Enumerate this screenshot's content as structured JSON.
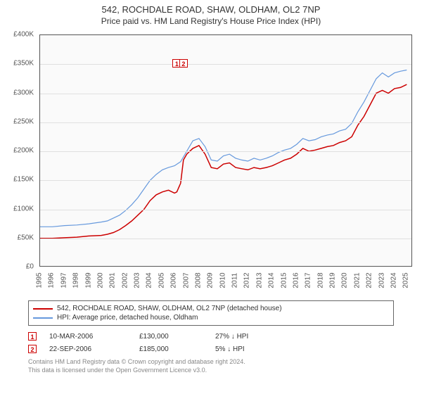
{
  "title": "542, ROCHDALE ROAD, SHAW, OLDHAM, OL2 7NP",
  "subtitle": "Price paid vs. HM Land Registry's House Price Index (HPI)",
  "chart": {
    "type": "line",
    "background_color": "#fafafa",
    "border_color": "#555555",
    "grid_color": "#e0e0e0",
    "x_years": [
      1995,
      1996,
      1997,
      1998,
      1999,
      2000,
      2001,
      2002,
      2003,
      2004,
      2005,
      2006,
      2007,
      2008,
      2009,
      2010,
      2011,
      2012,
      2013,
      2014,
      2015,
      2016,
      2017,
      2018,
      2019,
      2020,
      2021,
      2022,
      2023,
      2024,
      2025
    ],
    "x_min": 1995,
    "x_max": 2025.5,
    "ylim": [
      0,
      400000
    ],
    "ytick_step": 50000,
    "y_labels": [
      "£0",
      "£50K",
      "£100K",
      "£150K",
      "£200K",
      "£250K",
      "£300K",
      "£350K",
      "£400K"
    ],
    "label_fontsize": 10,
    "label_color": "#555555",
    "series": [
      {
        "name": "property",
        "color": "#cc0000",
        "width": 1.5,
        "legend": "542, ROCHDALE ROAD, SHAW, OLDHAM, OL2 7NP (detached house)",
        "points": [
          [
            1995,
            50000
          ],
          [
            1996,
            50000
          ],
          [
            1997,
            51000
          ],
          [
            1998,
            52000
          ],
          [
            1999,
            54000
          ],
          [
            2000,
            55000
          ],
          [
            2000.5,
            57000
          ],
          [
            2001,
            60000
          ],
          [
            2001.5,
            65000
          ],
          [
            2002,
            72000
          ],
          [
            2002.5,
            80000
          ],
          [
            2003,
            90000
          ],
          [
            2003.5,
            100000
          ],
          [
            2004,
            115000
          ],
          [
            2004.5,
            125000
          ],
          [
            2005,
            130000
          ],
          [
            2005.5,
            133000
          ],
          [
            2006,
            128000
          ],
          [
            2006.19,
            130000
          ],
          [
            2006.5,
            145000
          ],
          [
            2006.73,
            185000
          ],
          [
            2007,
            195000
          ],
          [
            2007.5,
            205000
          ],
          [
            2008,
            210000
          ],
          [
            2008.5,
            195000
          ],
          [
            2009,
            172000
          ],
          [
            2009.5,
            170000
          ],
          [
            2010,
            178000
          ],
          [
            2010.5,
            180000
          ],
          [
            2011,
            172000
          ],
          [
            2011.5,
            170000
          ],
          [
            2012,
            168000
          ],
          [
            2012.5,
            172000
          ],
          [
            2013,
            170000
          ],
          [
            2013.5,
            172000
          ],
          [
            2014,
            175000
          ],
          [
            2014.5,
            180000
          ],
          [
            2015,
            185000
          ],
          [
            2015.5,
            188000
          ],
          [
            2016,
            195000
          ],
          [
            2016.5,
            205000
          ],
          [
            2017,
            200000
          ],
          [
            2017.5,
            202000
          ],
          [
            2018,
            205000
          ],
          [
            2018.5,
            208000
          ],
          [
            2019,
            210000
          ],
          [
            2019.5,
            215000
          ],
          [
            2020,
            218000
          ],
          [
            2020.5,
            225000
          ],
          [
            2021,
            245000
          ],
          [
            2021.5,
            260000
          ],
          [
            2022,
            280000
          ],
          [
            2022.5,
            300000
          ],
          [
            2023,
            305000
          ],
          [
            2023.5,
            300000
          ],
          [
            2024,
            308000
          ],
          [
            2024.5,
            310000
          ],
          [
            2025,
            315000
          ]
        ]
      },
      {
        "name": "hpi",
        "color": "#6699dd",
        "width": 1.2,
        "legend": "HPI: Average price, detached house, Oldham",
        "points": [
          [
            1995,
            70000
          ],
          [
            1996,
            70000
          ],
          [
            1997,
            72000
          ],
          [
            1998,
            73000
          ],
          [
            1999,
            75000
          ],
          [
            2000,
            78000
          ],
          [
            2000.5,
            80000
          ],
          [
            2001,
            85000
          ],
          [
            2001.5,
            90000
          ],
          [
            2002,
            98000
          ],
          [
            2002.5,
            108000
          ],
          [
            2003,
            120000
          ],
          [
            2003.5,
            135000
          ],
          [
            2004,
            150000
          ],
          [
            2004.5,
            160000
          ],
          [
            2005,
            168000
          ],
          [
            2005.5,
            172000
          ],
          [
            2006,
            175000
          ],
          [
            2006.5,
            182000
          ],
          [
            2007,
            200000
          ],
          [
            2007.5,
            218000
          ],
          [
            2008,
            222000
          ],
          [
            2008.5,
            208000
          ],
          [
            2009,
            185000
          ],
          [
            2009.5,
            183000
          ],
          [
            2010,
            192000
          ],
          [
            2010.5,
            195000
          ],
          [
            2011,
            188000
          ],
          [
            2011.5,
            185000
          ],
          [
            2012,
            183000
          ],
          [
            2012.5,
            188000
          ],
          [
            2013,
            185000
          ],
          [
            2013.5,
            188000
          ],
          [
            2014,
            192000
          ],
          [
            2014.5,
            198000
          ],
          [
            2015,
            202000
          ],
          [
            2015.5,
            205000
          ],
          [
            2016,
            212000
          ],
          [
            2016.5,
            222000
          ],
          [
            2017,
            218000
          ],
          [
            2017.5,
            220000
          ],
          [
            2018,
            225000
          ],
          [
            2018.5,
            228000
          ],
          [
            2019,
            230000
          ],
          [
            2019.5,
            235000
          ],
          [
            2020,
            238000
          ],
          [
            2020.5,
            248000
          ],
          [
            2021,
            268000
          ],
          [
            2021.5,
            285000
          ],
          [
            2022,
            305000
          ],
          [
            2022.5,
            325000
          ],
          [
            2023,
            335000
          ],
          [
            2023.5,
            328000
          ],
          [
            2024,
            335000
          ],
          [
            2024.5,
            338000
          ],
          [
            2025,
            340000
          ]
        ]
      }
    ],
    "markers": [
      {
        "id": "1",
        "x": 2006.19,
        "y": 352000
      },
      {
        "id": "2",
        "x": 2006.73,
        "y": 352000
      }
    ]
  },
  "sales": [
    {
      "id": "1",
      "date": "10-MAR-2006",
      "price": "£130,000",
      "diff": "27%  ↓  HPI"
    },
    {
      "id": "2",
      "date": "22-SEP-2006",
      "price": "£185,000",
      "diff": "5%  ↓  HPI"
    }
  ],
  "footer_line1": "Contains HM Land Registry data © Crown copyright and database right 2024.",
  "footer_line2": "This data is licensed under the Open Government Licence v3.0."
}
